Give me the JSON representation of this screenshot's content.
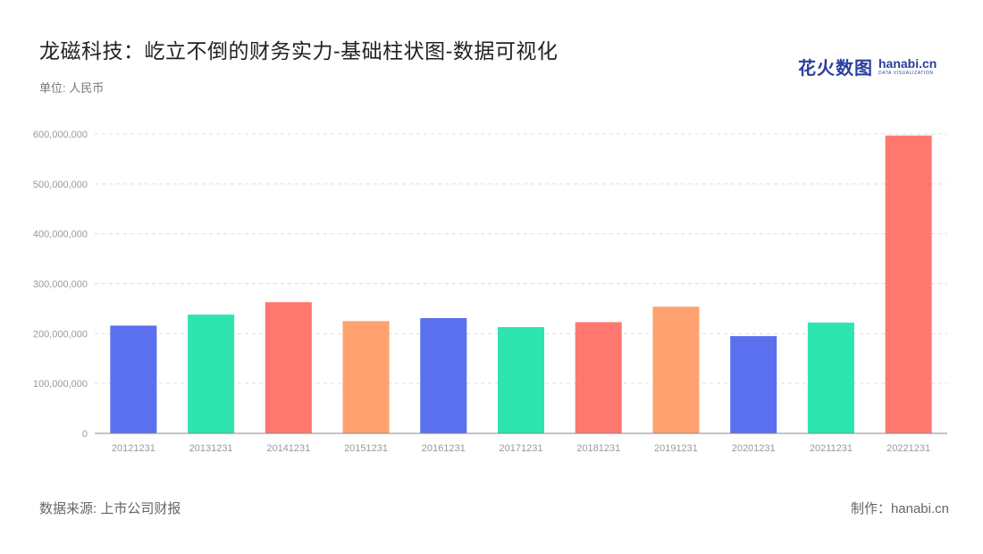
{
  "header": {
    "title": "龙磁科技：屹立不倒的财务实力-基础柱状图-数据可视化",
    "unit": "单位: 人民币"
  },
  "logo": {
    "cn": "花火数图",
    "en": "hanabi.cn",
    "sub": "DATA VISUALIZATION"
  },
  "footer": {
    "source": "数据来源: 上市公司财报",
    "credit": "制作：hanabi.cn"
  },
  "chart_data": {
    "type": "bar",
    "title": "龙磁科技：屹立不倒的财务实力-基础柱状图-数据可视化",
    "ylabel": "",
    "xlabel": "",
    "categories": [
      "20121231",
      "20131231",
      "20141231",
      "20151231",
      "20161231",
      "20171231",
      "20181231",
      "20191231",
      "20201231",
      "20211231",
      "20221231"
    ],
    "values": [
      216000000,
      238000000,
      263000000,
      225000000,
      231000000,
      213000000,
      223000000,
      254000000,
      195000000,
      222000000,
      597000000
    ],
    "ylim": [
      0,
      600000000
    ],
    "yticks": [
      0,
      100000000,
      200000000,
      300000000,
      400000000,
      500000000,
      600000000
    ],
    "ytick_labels": [
      "0",
      "100,000,000",
      "200,000,000",
      "300,000,000",
      "400,000,000",
      "500,000,000",
      "600,000,000"
    ],
    "grid": true,
    "colors": [
      "#5a70ee",
      "#2ee5b0",
      "#ff7870",
      "#ffa270"
    ]
  }
}
